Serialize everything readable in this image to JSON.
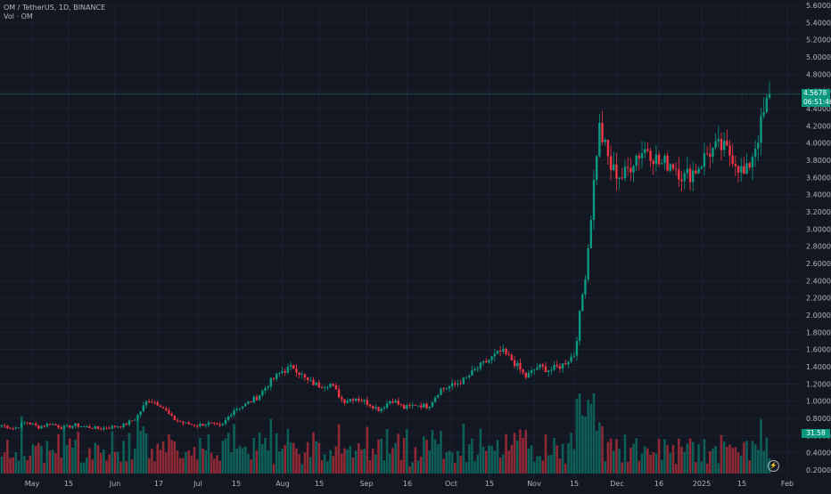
{
  "legend": {
    "symbol_line": "OM / TetherUS, 1D, BINANCE",
    "volume_line": "Vol · OM"
  },
  "price_badge": {
    "price": "4.5678",
    "countdown": "06:51:46"
  },
  "volume_badge": {
    "value": "31.58"
  },
  "colors": {
    "up": "#089981",
    "down": "#f23645",
    "background": "#131722",
    "grid": "#1e2230",
    "text": "#b2b5be"
  },
  "chart_data": {
    "type": "candlestick",
    "price_axis": {
      "min": 0.2,
      "max": 5.6,
      "ticks": [
        "0.2000",
        "0.4000",
        "0.6000",
        "0.8000",
        "1.0000",
        "1.2000",
        "1.4000",
        "1.6000",
        "1.8000",
        "2.0000",
        "2.2000",
        "2.4000",
        "2.6000",
        "2.8000",
        "3.0000",
        "3.2000",
        "3.4000",
        "3.6000",
        "3.8000",
        "4.0000",
        "4.2000",
        "4.4000",
        "4.6000",
        "4.8000",
        "5.0000",
        "5.2000",
        "5.4000",
        "5.6000"
      ]
    },
    "x_axis": {
      "labels": [
        "May",
        "15",
        "Jun",
        "17",
        "Jul",
        "15",
        "Aug",
        "15",
        "Sep",
        "16",
        "Oct",
        "15",
        "Nov",
        "15",
        "Dec",
        "16",
        "2025",
        "15",
        "Feb"
      ]
    },
    "grid": true,
    "last_price": 4.5678,
    "anchors": [
      {
        "close": 0.72
      },
      {
        "close": 0.68
      },
      {
        "close": 0.76
      },
      {
        "close": 0.7
      },
      {
        "close": 0.74
      },
      {
        "close": 0.69
      },
      {
        "close": 0.72
      },
      {
        "close": 0.7
      },
      {
        "close": 0.68
      },
      {
        "close": 0.7
      },
      {
        "close": 0.72
      },
      {
        "close": 0.8
      },
      {
        "close": 1.02
      },
      {
        "close": 0.96
      },
      {
        "close": 0.8
      },
      {
        "close": 0.74
      },
      {
        "close": 0.72
      },
      {
        "close": 0.74
      },
      {
        "close": 0.7
      },
      {
        "close": 0.9
      },
      {
        "close": 0.96
      },
      {
        "close": 1.05
      },
      {
        "close": 1.22
      },
      {
        "close": 1.35
      },
      {
        "close": 1.4
      },
      {
        "close": 1.24
      },
      {
        "close": 1.18
      },
      {
        "close": 1.2
      },
      {
        "close": 1.0
      },
      {
        "close": 1.04
      },
      {
        "close": 0.98
      },
      {
        "close": 0.9
      },
      {
        "close": 1.02
      },
      {
        "close": 0.92
      },
      {
        "close": 0.96
      },
      {
        "close": 0.94
      },
      {
        "close": 1.14
      },
      {
        "close": 1.18
      },
      {
        "close": 1.25
      },
      {
        "close": 1.38
      },
      {
        "close": 1.48
      },
      {
        "close": 1.58
      },
      {
        "close": 1.46
      },
      {
        "close": 1.28
      },
      {
        "close": 1.4
      },
      {
        "close": 1.36
      },
      {
        "close": 1.42
      },
      {
        "close": 1.55
      },
      {
        "close": 2.6
      },
      {
        "close": 4.2
      },
      {
        "close": 3.7
      },
      {
        "close": 3.6
      },
      {
        "close": 3.85
      },
      {
        "close": 3.95
      },
      {
        "close": 3.75
      },
      {
        "close": 3.78
      },
      {
        "close": 3.6
      },
      {
        "close": 3.7
      },
      {
        "close": 3.9
      },
      {
        "close": 3.95
      },
      {
        "close": 3.85
      },
      {
        "close": 3.6
      },
      {
        "close": 4.05
      },
      {
        "close": 4.57
      }
    ]
  }
}
